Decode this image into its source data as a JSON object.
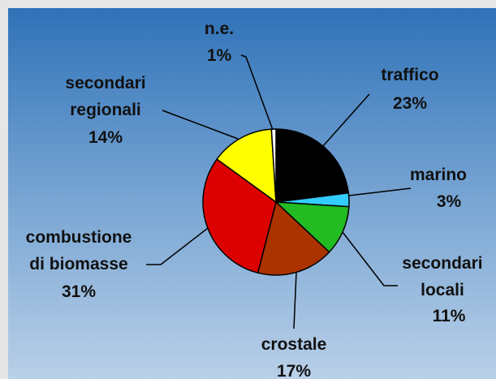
{
  "chart_data": {
    "type": "pie",
    "categories": [
      "traffico",
      "marino",
      "secondari\nlocali",
      "crostale",
      "combustione\ndi biomasse",
      "secondari\nregionali",
      "n.e."
    ],
    "values": [
      23,
      3,
      11,
      17,
      31,
      14,
      1
    ],
    "value_labels": [
      "23%",
      "3%",
      "11%",
      "17%",
      "31%",
      "14%",
      "1%"
    ],
    "colors": [
      "#000000",
      "#33ccff",
      "#22bb22",
      "#aa3300",
      "#dd0000",
      "#ffff00",
      "#ffffff"
    ]
  }
}
